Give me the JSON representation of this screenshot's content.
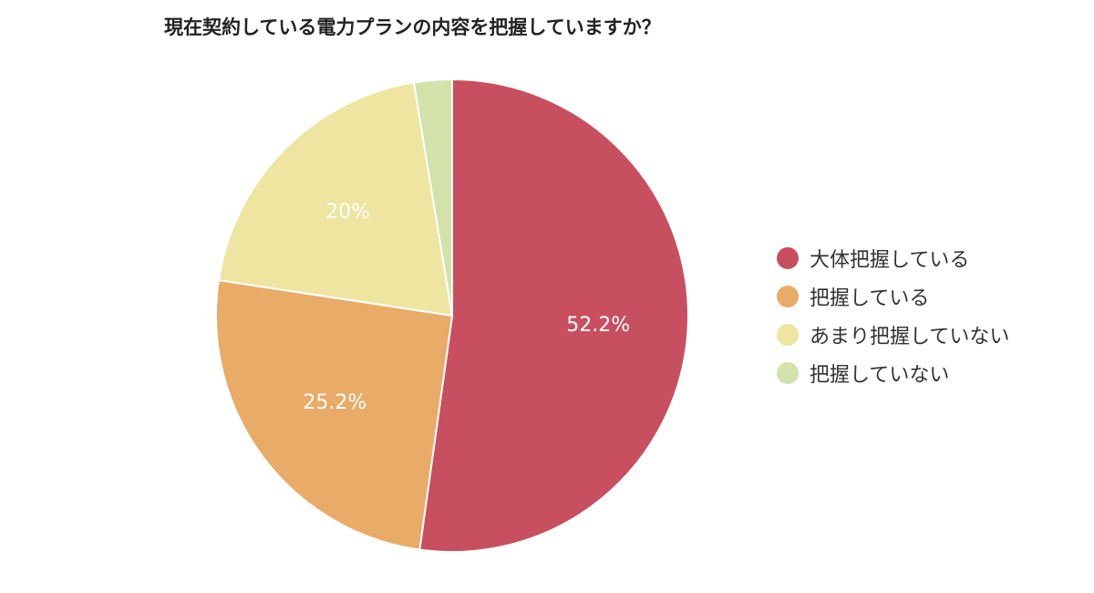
{
  "chart_data": {
    "type": "pie",
    "title": "現在契約している電力プランの内容を把握していますか？",
    "legend_position": "right",
    "slices": [
      {
        "label": "大体把握している",
        "value": 52.2,
        "value_label": "52.2%",
        "color": "#c84f5f"
      },
      {
        "label": "把握している",
        "value": 25.2,
        "value_label": "25.2%",
        "color": "#e8ab68"
      },
      {
        "label": "あまり把握していない",
        "value": 20.0,
        "value_label": "20%",
        "color": "#ede5a0"
      },
      {
        "label": "把握していない",
        "value": 2.6,
        "value_label": "",
        "color": "#d2e2aa"
      }
    ]
  }
}
